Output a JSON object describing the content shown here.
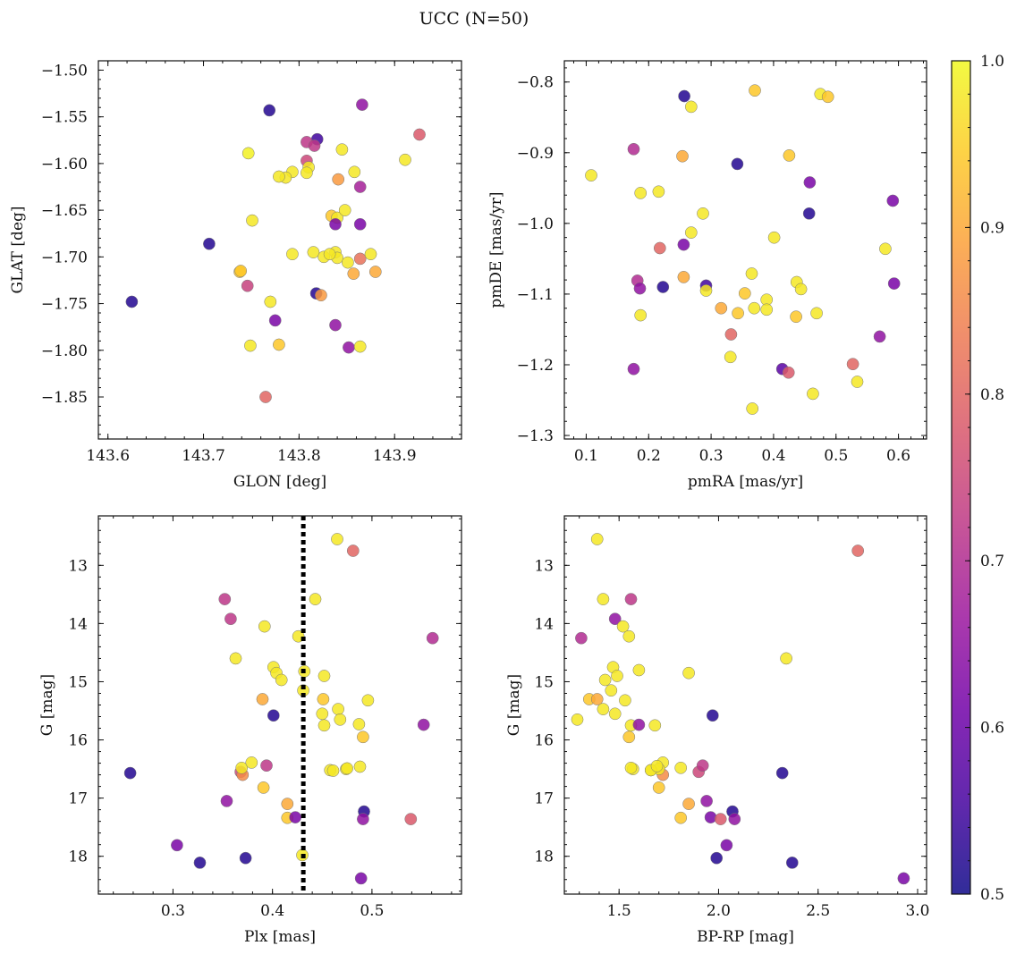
{
  "figure": {
    "title": "UCC (N=50)"
  },
  "colorbar": {
    "min": 0.5,
    "max": 1.0,
    "ticks": [
      0.5,
      0.6,
      0.7,
      0.8,
      0.9,
      1.0
    ],
    "tick_labels": [
      "0.5",
      "0.6",
      "0.7",
      "0.8",
      "0.9",
      "1.0"
    ],
    "colormap": [
      "#0d0887",
      "#46039f",
      "#7201a8",
      "#9c179e",
      "#bd3786",
      "#d8576b",
      "#ed7953",
      "#fb9f3a",
      "#fdca26",
      "#f0f921"
    ]
  },
  "chart_data": [
    {
      "type": "scatter",
      "name": "glon-glat",
      "xlabel": "GLON [deg]",
      "ylabel": "GLAT [deg]",
      "xlim": [
        143.59,
        143.97
      ],
      "ylim": [
        -1.895,
        -1.49
      ],
      "y_inverted": false,
      "xticks": [
        143.6,
        143.7,
        143.8,
        143.9
      ],
      "xtick_labels": [
        "143.6",
        "143.7",
        "143.8",
        "143.9"
      ],
      "yticks": [
        -1.85,
        -1.8,
        -1.75,
        -1.7,
        -1.65,
        -1.6,
        -1.55,
        -1.5
      ],
      "ytick_labels": [
        "−1.85",
        "−1.80",
        "−1.75",
        "−1.70",
        "−1.65",
        "−1.60",
        "−1.55",
        "−1.50"
      ],
      "points": [
        [
          143.625,
          -1.748,
          0.52
        ],
        [
          143.706,
          -1.686,
          0.52
        ],
        [
          143.769,
          -1.543,
          0.52
        ],
        [
          143.819,
          -1.574,
          0.55
        ],
        [
          143.818,
          -1.739,
          0.52
        ],
        [
          143.866,
          -1.537,
          0.65
        ],
        [
          143.926,
          -1.569,
          0.78
        ],
        [
          143.911,
          -1.596,
          0.98
        ],
        [
          143.747,
          -1.589,
          0.99
        ],
        [
          143.808,
          -1.577,
          0.72
        ],
        [
          143.816,
          -1.581,
          0.72
        ],
        [
          143.845,
          -1.585,
          0.98
        ],
        [
          143.808,
          -1.597,
          0.75
        ],
        [
          143.81,
          -1.604,
          0.98
        ],
        [
          143.808,
          -1.61,
          0.98
        ],
        [
          143.793,
          -1.609,
          0.98
        ],
        [
          143.786,
          -1.615,
          0.98
        ],
        [
          143.779,
          -1.614,
          0.98
        ],
        [
          143.841,
          -1.617,
          0.88
        ],
        [
          143.858,
          -1.609,
          0.98
        ],
        [
          143.864,
          -1.625,
          0.68
        ],
        [
          143.751,
          -1.661,
          0.98
        ],
        [
          143.834,
          -1.656,
          0.94
        ],
        [
          143.84,
          -1.658,
          0.98
        ],
        [
          143.848,
          -1.65,
          0.98
        ],
        [
          143.838,
          -1.665,
          0.62
        ],
        [
          143.864,
          -1.665,
          0.62
        ],
        [
          143.793,
          -1.697,
          0.98
        ],
        [
          143.815,
          -1.695,
          0.98
        ],
        [
          143.826,
          -1.7,
          0.98
        ],
        [
          143.838,
          -1.695,
          0.98
        ],
        [
          143.84,
          -1.701,
          0.98
        ],
        [
          143.851,
          -1.706,
          0.98
        ],
        [
          143.864,
          -1.702,
          0.82
        ],
        [
          143.875,
          -1.697,
          0.98
        ],
        [
          143.738,
          -1.716,
          0.94
        ],
        [
          143.739,
          -1.715,
          0.94
        ],
        [
          143.857,
          -1.718,
          0.9
        ],
        [
          143.88,
          -1.716,
          0.9
        ],
        [
          143.746,
          -1.731,
          0.74
        ],
        [
          143.77,
          -1.748,
          0.98
        ],
        [
          143.823,
          -1.741,
          0.88
        ],
        [
          143.775,
          -1.768,
          0.62
        ],
        [
          143.838,
          -1.773,
          0.65
        ],
        [
          143.749,
          -1.795,
          0.98
        ],
        [
          143.779,
          -1.794,
          0.94
        ],
        [
          143.852,
          -1.797,
          0.65
        ],
        [
          143.864,
          -1.796,
          0.98
        ],
        [
          143.765,
          -1.85,
          0.8
        ],
        [
          143.832,
          -1.697,
          0.98
        ]
      ]
    },
    {
      "type": "scatter",
      "name": "pmra-pmde",
      "xlabel": "pmRA [mas/yr]",
      "ylabel": "pmDE [mas/yr]",
      "xlim": [
        0.065,
        0.645
      ],
      "ylim": [
        -1.305,
        -0.77
      ],
      "y_inverted": false,
      "xticks": [
        0.1,
        0.2,
        0.3,
        0.4,
        0.5,
        0.6
      ],
      "xtick_labels": [
        "0.1",
        "0.2",
        "0.3",
        "0.4",
        "0.5",
        "0.6"
      ],
      "yticks": [
        -1.3,
        -1.2,
        -1.1,
        -1.0,
        -0.9,
        -0.8
      ],
      "ytick_labels": [
        "−1.3",
        "−1.2",
        "−1.1",
        "−1.0",
        "−0.9",
        "−0.8"
      ],
      "points": [
        [
          0.257,
          -0.82,
          0.52
        ],
        [
          0.268,
          -0.835,
          0.98
        ],
        [
          0.37,
          -0.812,
          0.94
        ],
        [
          0.475,
          -0.817,
          0.98
        ],
        [
          0.487,
          -0.821,
          0.94
        ],
        [
          0.108,
          -0.932,
          0.98
        ],
        [
          0.176,
          -0.895,
          0.7
        ],
        [
          0.254,
          -0.905,
          0.9
        ],
        [
          0.342,
          -0.916,
          0.52
        ],
        [
          0.425,
          -0.904,
          0.94
        ],
        [
          0.458,
          -0.942,
          0.62
        ],
        [
          0.187,
          -0.957,
          0.98
        ],
        [
          0.216,
          -0.955,
          0.98
        ],
        [
          0.287,
          -0.986,
          0.98
        ],
        [
          0.457,
          -0.986,
          0.52
        ],
        [
          0.591,
          -0.968,
          0.62
        ],
        [
          0.268,
          -1.013,
          0.98
        ],
        [
          0.256,
          -1.03,
          0.62
        ],
        [
          0.218,
          -1.035,
          0.8
        ],
        [
          0.401,
          -1.02,
          0.98
        ],
        [
          0.579,
          -1.036,
          0.98
        ],
        [
          0.182,
          -1.081,
          0.7
        ],
        [
          0.186,
          -1.092,
          0.65
        ],
        [
          0.223,
          -1.09,
          0.52
        ],
        [
          0.256,
          -1.076,
          0.9
        ],
        [
          0.292,
          -1.088,
          0.55
        ],
        [
          0.292,
          -1.095,
          0.98
        ],
        [
          0.365,
          -1.071,
          0.98
        ],
        [
          0.354,
          -1.099,
          0.94
        ],
        [
          0.437,
          -1.083,
          0.98
        ],
        [
          0.444,
          -1.093,
          0.98
        ],
        [
          0.593,
          -1.085,
          0.62
        ],
        [
          0.187,
          -1.13,
          0.98
        ],
        [
          0.316,
          -1.12,
          0.9
        ],
        [
          0.343,
          -1.127,
          0.94
        ],
        [
          0.369,
          -1.12,
          0.98
        ],
        [
          0.389,
          -1.108,
          0.98
        ],
        [
          0.389,
          -1.122,
          0.98
        ],
        [
          0.436,
          -1.132,
          0.94
        ],
        [
          0.469,
          -1.127,
          0.98
        ],
        [
          0.332,
          -1.157,
          0.8
        ],
        [
          0.57,
          -1.16,
          0.65
        ],
        [
          0.176,
          -1.206,
          0.65
        ],
        [
          0.331,
          -1.189,
          0.98
        ],
        [
          0.414,
          -1.206,
          0.58
        ],
        [
          0.424,
          -1.211,
          0.78
        ],
        [
          0.527,
          -1.199,
          0.8
        ],
        [
          0.534,
          -1.224,
          0.98
        ],
        [
          0.463,
          -1.241,
          0.98
        ],
        [
          0.366,
          -1.262,
          0.98
        ]
      ]
    },
    {
      "type": "scatter",
      "name": "plx-g",
      "xlabel": "Plx [mas]",
      "ylabel": "G [mag]",
      "xlim": [
        0.225,
        0.59
      ],
      "ylim": [
        12.15,
        18.65
      ],
      "y_inverted": true,
      "xticks": [
        0.3,
        0.4,
        0.5
      ],
      "xtick_labels": [
        "0.3",
        "0.4",
        "0.5"
      ],
      "yticks": [
        13,
        14,
        15,
        16,
        17,
        18
      ],
      "ytick_labels": [
        "13",
        "14",
        "15",
        "16",
        "17",
        "18"
      ],
      "vline": 0.431,
      "points": [
        [
          0.465,
          12.55,
          0.98
        ],
        [
          0.481,
          12.75,
          0.8
        ],
        [
          0.352,
          13.58,
          0.72
        ],
        [
          0.443,
          13.58,
          0.98
        ],
        [
          0.358,
          13.92,
          0.72
        ],
        [
          0.392,
          14.05,
          0.98
        ],
        [
          0.426,
          14.22,
          0.98
        ],
        [
          0.561,
          14.25,
          0.7
        ],
        [
          0.363,
          14.6,
          0.98
        ],
        [
          0.401,
          14.75,
          0.98
        ],
        [
          0.404,
          14.85,
          0.98
        ],
        [
          0.409,
          14.97,
          0.98
        ],
        [
          0.432,
          14.82,
          0.98
        ],
        [
          0.452,
          14.9,
          0.98
        ],
        [
          0.431,
          15.15,
          0.98
        ],
        [
          0.451,
          15.3,
          0.94
        ],
        [
          0.39,
          15.3,
          0.9
        ],
        [
          0.496,
          15.32,
          0.98
        ],
        [
          0.466,
          15.47,
          0.98
        ],
        [
          0.45,
          15.55,
          0.98
        ],
        [
          0.401,
          15.58,
          0.52
        ],
        [
          0.468,
          15.65,
          0.98
        ],
        [
          0.452,
          15.75,
          0.98
        ],
        [
          0.487,
          15.73,
          0.98
        ],
        [
          0.552,
          15.74,
          0.65
        ],
        [
          0.491,
          15.95,
          0.94
        ],
        [
          0.257,
          16.57,
          0.52
        ],
        [
          0.368,
          16.55,
          0.75
        ],
        [
          0.37,
          16.6,
          0.86
        ],
        [
          0.369,
          16.48,
          0.98
        ],
        [
          0.379,
          16.39,
          0.98
        ],
        [
          0.394,
          16.44,
          0.72
        ],
        [
          0.458,
          16.52,
          0.98
        ],
        [
          0.461,
          16.53,
          0.98
        ],
        [
          0.474,
          16.5,
          0.98
        ],
        [
          0.475,
          16.49,
          0.98
        ],
        [
          0.488,
          16.46,
          0.98
        ],
        [
          0.391,
          16.82,
          0.94
        ],
        [
          0.354,
          17.05,
          0.65
        ],
        [
          0.415,
          17.1,
          0.9
        ],
        [
          0.415,
          17.34,
          0.94
        ],
        [
          0.423,
          17.33,
          0.62
        ],
        [
          0.492,
          17.23,
          0.52
        ],
        [
          0.491,
          17.36,
          0.65
        ],
        [
          0.539,
          17.36,
          0.78
        ],
        [
          0.304,
          17.81,
          0.62
        ],
        [
          0.373,
          18.03,
          0.52
        ],
        [
          0.327,
          18.11,
          0.52
        ],
        [
          0.489,
          18.38,
          0.62
        ],
        [
          0.43,
          17.98,
          0.98
        ]
      ]
    },
    {
      "type": "scatter",
      "name": "bprp-g",
      "xlabel": "BP-RP [mag]",
      "ylabel": "G [mag]",
      "xlim": [
        1.225,
        3.045
      ],
      "ylim": [
        12.15,
        18.65
      ],
      "y_inverted": true,
      "xticks": [
        1.5,
        2.0,
        2.5,
        3.0
      ],
      "xtick_labels": [
        "1.5",
        "2.0",
        "2.5",
        "3.0"
      ],
      "yticks": [
        13,
        14,
        15,
        16,
        17,
        18
      ],
      "ytick_labels": [
        "13",
        "14",
        "15",
        "16",
        "17",
        "18"
      ],
      "points": [
        [
          1.39,
          12.55,
          0.98
        ],
        [
          2.7,
          12.75,
          0.8
        ],
        [
          1.42,
          13.58,
          0.98
        ],
        [
          1.56,
          13.58,
          0.72
        ],
        [
          1.48,
          13.92,
          0.65
        ],
        [
          1.52,
          14.05,
          0.98
        ],
        [
          1.55,
          14.22,
          0.98
        ],
        [
          1.31,
          14.25,
          0.7
        ],
        [
          2.34,
          14.6,
          0.98
        ],
        [
          1.47,
          14.75,
          0.98
        ],
        [
          1.6,
          14.8,
          0.98
        ],
        [
          1.85,
          14.85,
          0.98
        ],
        [
          1.49,
          14.9,
          0.98
        ],
        [
          1.43,
          14.97,
          0.98
        ],
        [
          1.46,
          15.15,
          0.98
        ],
        [
          1.35,
          15.3,
          0.94
        ],
        [
          1.39,
          15.3,
          0.9
        ],
        [
          1.53,
          15.32,
          0.98
        ],
        [
          1.42,
          15.47,
          0.98
        ],
        [
          1.48,
          15.55,
          0.98
        ],
        [
          1.97,
          15.58,
          0.52
        ],
        [
          1.29,
          15.65,
          0.98
        ],
        [
          1.56,
          15.75,
          0.98
        ],
        [
          1.6,
          15.74,
          0.65
        ],
        [
          1.68,
          15.75,
          0.98
        ],
        [
          1.55,
          15.95,
          0.94
        ],
        [
          2.32,
          16.57,
          0.52
        ],
        [
          1.9,
          16.55,
          0.75
        ],
        [
          1.72,
          16.6,
          0.86
        ],
        [
          1.81,
          16.48,
          0.98
        ],
        [
          1.72,
          16.39,
          0.98
        ],
        [
          1.92,
          16.44,
          0.72
        ],
        [
          1.66,
          16.52,
          0.98
        ],
        [
          1.7,
          16.5,
          0.98
        ],
        [
          1.57,
          16.5,
          0.98
        ],
        [
          1.56,
          16.48,
          0.98
        ],
        [
          1.7,
          16.82,
          0.94
        ],
        [
          1.94,
          17.05,
          0.65
        ],
        [
          1.85,
          17.1,
          0.9
        ],
        [
          1.81,
          17.34,
          0.94
        ],
        [
          1.96,
          17.33,
          0.62
        ],
        [
          2.07,
          17.23,
          0.52
        ],
        [
          2.08,
          17.36,
          0.65
        ],
        [
          2.01,
          17.36,
          0.78
        ],
        [
          2.04,
          17.81,
          0.62
        ],
        [
          1.99,
          18.03,
          0.52
        ],
        [
          2.37,
          18.11,
          0.52
        ],
        [
          2.93,
          18.38,
          0.62
        ],
        [
          1.66,
          16.52,
          0.98
        ],
        [
          1.69,
          16.45,
          0.98
        ]
      ]
    }
  ]
}
